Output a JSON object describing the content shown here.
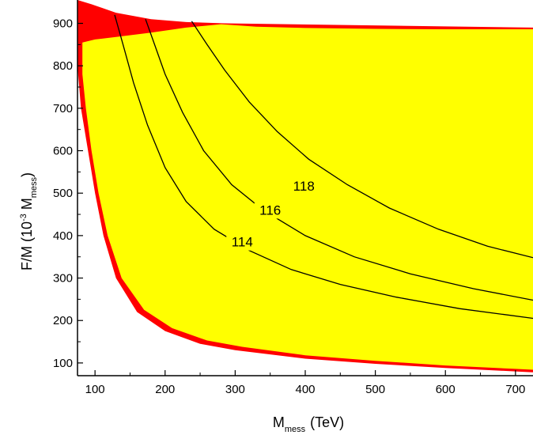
{
  "chart_data": {
    "type": "area",
    "title": "",
    "xlabel": {
      "main": "M",
      "sub": "mess",
      "unit": "(TeV)"
    },
    "ylabel": {
      "main": "F/M (10",
      "sup": "-3",
      "mid": " M",
      "sub": "mess",
      "end": ")"
    },
    "xlim": [
      75,
      725
    ],
    "ylim": [
      70,
      955
    ],
    "x_ticks": [
      100,
      200,
      300,
      400,
      500,
      600,
      700
    ],
    "y_ticks": [
      100,
      200,
      300,
      400,
      500,
      600,
      700,
      800,
      900
    ],
    "x_tick_labels": [
      "100",
      "200",
      "300",
      "400",
      "500",
      "600",
      "700"
    ],
    "y_tick_labels": [
      "100",
      "200",
      "300",
      "400",
      "500",
      "600",
      "700",
      "800",
      "900"
    ],
    "grid": false,
    "colors": {
      "allowed": "#ffff00",
      "boundary": "#ff0000",
      "contour": "#000000"
    },
    "regions": {
      "red_boundary": {
        "upper": [
          [
            75,
            955
          ],
          [
            95,
            945
          ],
          [
            130,
            925
          ],
          [
            180,
            910
          ],
          [
            230,
            903
          ],
          [
            285,
            900
          ]
        ],
        "lower": [
          [
            75,
            800
          ],
          [
            80,
            700
          ],
          [
            90,
            600
          ],
          [
            100,
            500
          ],
          [
            112,
            400
          ],
          [
            130,
            300
          ],
          [
            160,
            220
          ],
          [
            200,
            175
          ],
          [
            250,
            145
          ],
          [
            300,
            130
          ],
          [
            400,
            110
          ],
          [
            500,
            98
          ],
          [
            600,
            88
          ],
          [
            700,
            80
          ],
          [
            725,
            78
          ]
        ]
      },
      "yellow_allowed": {
        "top": [
          [
            82,
            855
          ],
          [
            100,
            862
          ],
          [
            130,
            868
          ],
          [
            180,
            878
          ],
          [
            230,
            890
          ],
          [
            280,
            898
          ],
          [
            330,
            892
          ],
          [
            400,
            889
          ],
          [
            500,
            887
          ],
          [
            600,
            886
          ],
          [
            725,
            886
          ]
        ],
        "bottom_left": [
          [
            82,
            780
          ],
          [
            87,
            700
          ],
          [
            95,
            600
          ],
          [
            105,
            500
          ],
          [
            118,
            400
          ],
          [
            138,
            300
          ],
          [
            170,
            225
          ],
          [
            210,
            182
          ],
          [
            260,
            153
          ],
          [
            310,
            138
          ],
          [
            400,
            118
          ],
          [
            500,
            105
          ],
          [
            600,
            94
          ],
          [
            700,
            86
          ],
          [
            725,
            84
          ]
        ]
      }
    },
    "contours": [
      {
        "label": "114",
        "points": [
          [
            128,
            920
          ],
          [
            140,
            850
          ],
          [
            155,
            760
          ],
          [
            175,
            660
          ],
          [
            200,
            560
          ],
          [
            230,
            480
          ],
          [
            270,
            415
          ],
          [
            320,
            365
          ],
          [
            380,
            320
          ],
          [
            450,
            285
          ],
          [
            530,
            255
          ],
          [
            620,
            228
          ],
          [
            725,
            205
          ]
        ],
        "label_at": [
          310,
          378
        ]
      },
      {
        "label": "116",
        "points": [
          [
            172,
            910
          ],
          [
            185,
            850
          ],
          [
            200,
            780
          ],
          [
            225,
            690
          ],
          [
            255,
            600
          ],
          [
            295,
            520
          ],
          [
            340,
            460
          ],
          [
            400,
            400
          ],
          [
            470,
            350
          ],
          [
            550,
            310
          ],
          [
            640,
            275
          ],
          [
            725,
            248
          ]
        ],
        "label_at": [
          350,
          453
        ]
      },
      {
        "label": "118",
        "points": [
          [
            238,
            905
          ],
          [
            260,
            850
          ],
          [
            285,
            790
          ],
          [
            320,
            715
          ],
          [
            360,
            645
          ],
          [
            405,
            580
          ],
          [
            460,
            520
          ],
          [
            520,
            465
          ],
          [
            590,
            415
          ],
          [
            660,
            375
          ],
          [
            725,
            348
          ]
        ],
        "label_at": [
          398,
          510
        ]
      }
    ]
  }
}
